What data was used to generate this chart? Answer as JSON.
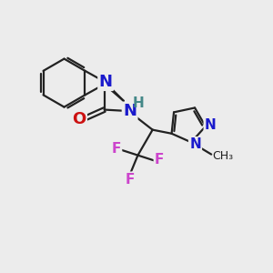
{
  "bg_color": "#ececec",
  "bond_color": "#222222",
  "N_color": "#1a1acc",
  "O_color": "#cc1111",
  "F_color": "#cc44cc",
  "H_color": "#448888",
  "line_width": 1.6,
  "font_size": 13,
  "font_size_small": 11,
  "figsize": [
    3.0,
    3.0
  ],
  "dpi": 100,
  "xlim": [
    0,
    10
  ],
  "ylim": [
    0,
    10
  ]
}
